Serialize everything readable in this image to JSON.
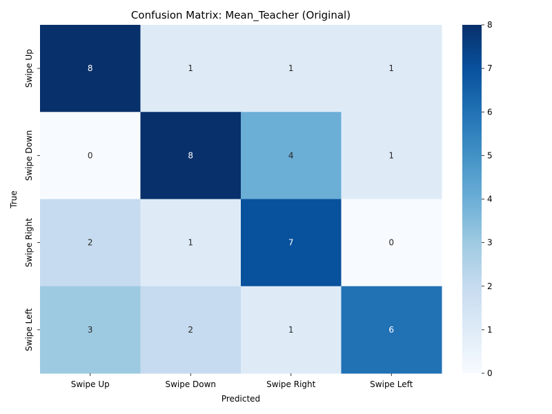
{
  "chart_data": {
    "type": "heatmap",
    "title": "Confusion Matrix: Mean_Teacher (Original)",
    "xlabel": "Predicted",
    "ylabel": "True",
    "x_categories": [
      "Swipe Up",
      "Swipe Down",
      "Swipe Right",
      "Swipe Left"
    ],
    "y_categories": [
      "Swipe Up",
      "Swipe Down",
      "Swipe Right",
      "Swipe Left"
    ],
    "values": [
      [
        8,
        1,
        1,
        1
      ],
      [
        0,
        8,
        4,
        1
      ],
      [
        2,
        1,
        7,
        0
      ],
      [
        3,
        2,
        1,
        6
      ]
    ],
    "colorbar": {
      "min": 0,
      "max": 8,
      "ticks": [
        "0",
        "1",
        "2",
        "3",
        "4",
        "5",
        "6",
        "7",
        "8"
      ],
      "colormap": "Blues",
      "colors": [
        "#f7fbff",
        "#deebf7",
        "#c6dbef",
        "#9ecae1",
        "#6baed6",
        "#4292c6",
        "#2171b5",
        "#08519c",
        "#08306b"
      ]
    },
    "annotations": true,
    "grid": false
  }
}
